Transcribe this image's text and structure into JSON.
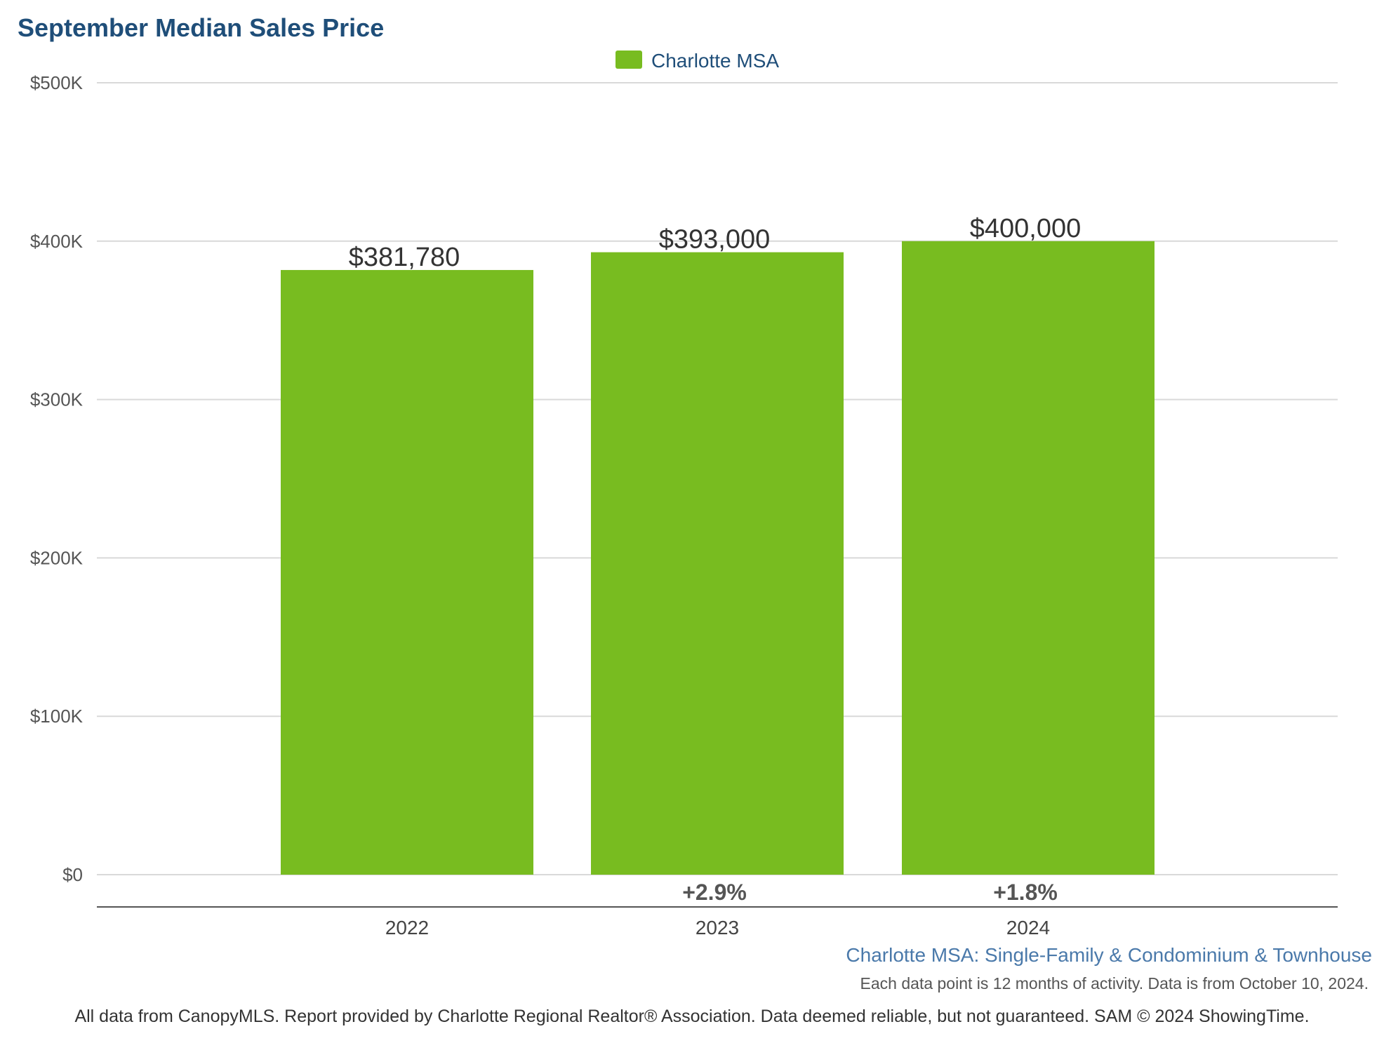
{
  "chart_data": {
    "type": "bar",
    "title": "September Median Sales Price",
    "categories": [
      "2022",
      "2023",
      "2024"
    ],
    "series": [
      {
        "name": "Charlotte MSA",
        "values": [
          381780,
          393000,
          400000
        ],
        "value_labels": [
          "$381,780",
          "$393,000",
          "$400,000"
        ]
      }
    ],
    "change_labels": [
      "",
      "+2.9%",
      "+1.8%"
    ],
    "ylim": [
      0,
      500000
    ],
    "yticks": [
      0,
      100000,
      200000,
      300000,
      400000,
      500000
    ],
    "ytick_labels": [
      "$0",
      "$100K",
      "$200K",
      "$300K",
      "$400K",
      "$500K"
    ],
    "xlabel": "",
    "ylabel": "",
    "grid": true,
    "legend_position": "top-center"
  },
  "subtitle": "Charlotte MSA: Single-Family & Condominium & Townhouse",
  "note": "Each data point is 12 months of activity. Data is from October 10, 2024.",
  "footer": "All data from CanopyMLS. Report provided by Charlotte Regional Realtor® Association. Data deemed reliable, but not guaranteed. SAM © 2024 ShowingTime.",
  "colors": {
    "bar": "#78bc20",
    "title": "#1f4e79",
    "legend_text": "#1f4e79",
    "subtitle": "#4a79aa",
    "gridline": "#d9d9d9",
    "axis_line": "#555555"
  }
}
